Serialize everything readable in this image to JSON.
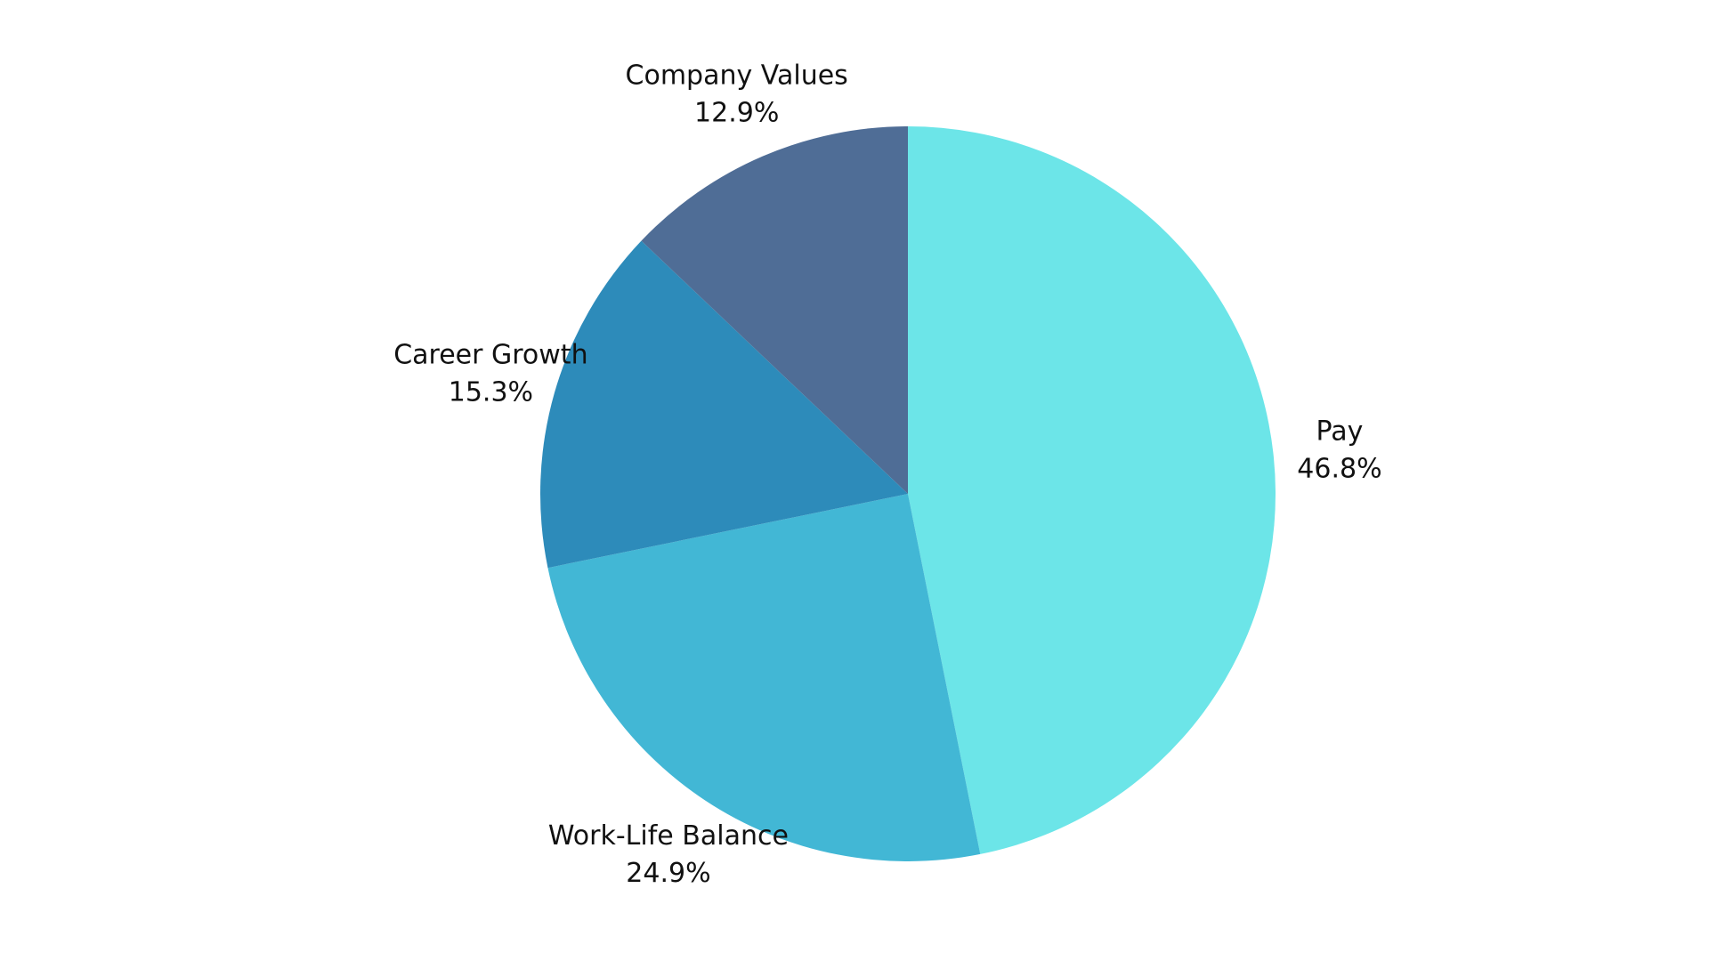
{
  "chart_data": {
    "type": "pie",
    "categories": [
      "Pay",
      "Work-Life Balance",
      "Career Growth",
      "Company Values"
    ],
    "values": [
      46.8,
      24.9,
      15.3,
      12.9
    ],
    "value_labels": [
      "46.8%",
      "24.9%",
      "15.3%",
      "12.9%"
    ],
    "colors": [
      "#6ce5e8",
      "#42b7d5",
      "#2d8bba",
      "#4f6d96"
    ]
  }
}
